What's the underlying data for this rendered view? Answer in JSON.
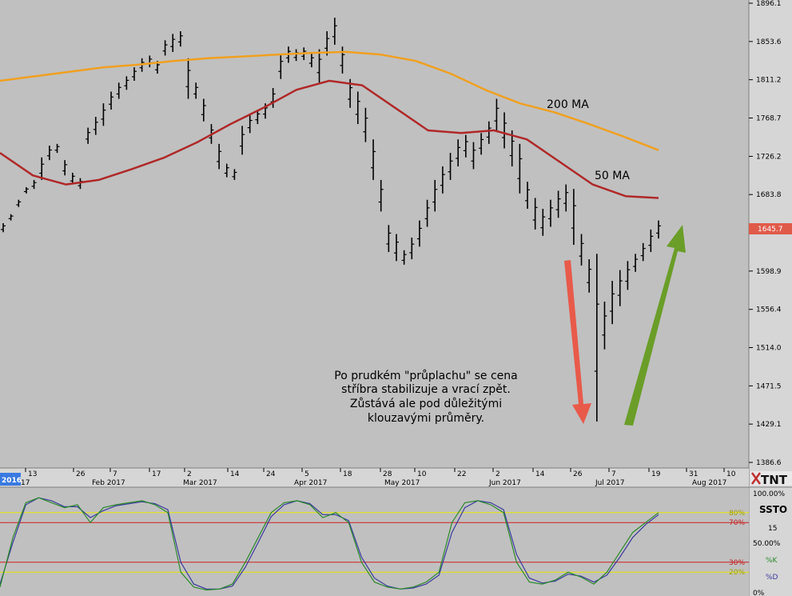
{
  "chart_data": {
    "type": "ohlc",
    "y_axis": {
      "ticks": [
        "1896.1",
        "1853.6",
        "1811.2",
        "1768.7",
        "1726.2",
        "1683.8",
        "1645.7",
        "1598.9",
        "1556.4",
        "1514.0",
        "1471.5",
        "1429.1",
        "1386.6"
      ],
      "last_price": "1645.7",
      "range": [
        1386.6,
        1896.1
      ]
    },
    "x_axis": {
      "day_ticks": [
        "17",
        "13",
        "26",
        "7",
        "17",
        "2",
        "14",
        "24",
        "5",
        "18",
        "28",
        "10",
        "22",
        "2",
        "14",
        "26",
        "7",
        "19",
        "31",
        "10"
      ],
      "month_labels": [
        "2016",
        "Feb 2017",
        "Mar 2017",
        "Apr 2017",
        "May 2017",
        "Jun 2017",
        "Jul 2017",
        "Aug 2017"
      ]
    },
    "moving_averages": [
      {
        "name": "200 MA",
        "color": "#f0a020"
      },
      {
        "name": "50 MA",
        "color": "#b02828"
      }
    ],
    "price_path": [
      [
        1642,
        1652
      ],
      [
        1655,
        1662
      ],
      [
        1670,
        1678
      ],
      [
        1685,
        1692
      ],
      [
        1690,
        1700
      ],
      [
        1700,
        1725
      ],
      [
        1722,
        1738
      ],
      [
        1730,
        1740
      ],
      [
        1705,
        1722
      ],
      [
        1695,
        1708
      ],
      [
        1690,
        1702
      ],
      [
        1740,
        1758
      ],
      [
        1750,
        1770
      ],
      [
        1760,
        1785
      ],
      [
        1778,
        1798
      ],
      [
        1790,
        1808
      ],
      [
        1800,
        1815
      ],
      [
        1810,
        1825
      ],
      [
        1820,
        1835
      ],
      [
        1825,
        1838
      ],
      [
        1818,
        1832
      ],
      [
        1838,
        1855
      ],
      [
        1842,
        1862
      ],
      [
        1848,
        1865
      ],
      [
        1790,
        1835
      ],
      [
        1790,
        1808
      ],
      [
        1765,
        1790
      ],
      [
        1740,
        1762
      ],
      [
        1712,
        1740
      ],
      [
        1703,
        1718
      ],
      [
        1700,
        1712
      ],
      [
        1728,
        1760
      ],
      [
        1752,
        1772
      ],
      [
        1762,
        1778
      ],
      [
        1768,
        1785
      ],
      [
        1780,
        1802
      ],
      [
        1812,
        1840
      ],
      [
        1830,
        1848
      ],
      [
        1832,
        1845
      ],
      [
        1833,
        1847
      ],
      [
        1825,
        1840
      ],
      [
        1808,
        1845
      ],
      [
        1838,
        1865
      ],
      [
        1850,
        1880
      ],
      [
        1818,
        1848
      ],
      [
        1780,
        1812
      ],
      [
        1762,
        1798
      ],
      [
        1742,
        1780
      ],
      [
        1700,
        1745
      ],
      [
        1665,
        1700
      ],
      [
        1620,
        1650
      ],
      [
        1610,
        1640
      ],
      [
        1606,
        1622
      ],
      [
        1612,
        1636
      ],
      [
        1626,
        1655
      ],
      [
        1648,
        1678
      ],
      [
        1665,
        1700
      ],
      [
        1685,
        1715
      ],
      [
        1700,
        1730
      ],
      [
        1715,
        1745
      ],
      [
        1725,
        1750
      ],
      [
        1712,
        1742
      ],
      [
        1728,
        1752
      ],
      [
        1740,
        1765
      ],
      [
        1755,
        1790
      ],
      [
        1735,
        1775
      ],
      [
        1715,
        1755
      ],
      [
        1685,
        1740
      ],
      [
        1668,
        1698
      ],
      [
        1645,
        1680
      ],
      [
        1638,
        1668
      ],
      [
        1648,
        1678
      ],
      [
        1658,
        1688
      ],
      [
        1665,
        1695
      ],
      [
        1628,
        1690
      ],
      [
        1605,
        1640
      ],
      [
        1575,
        1612
      ],
      [
        1432,
        1618
      ],
      [
        1512,
        1565
      ],
      [
        1540,
        1588
      ],
      [
        1560,
        1600
      ],
      [
        1578,
        1610
      ],
      [
        1598,
        1618
      ],
      [
        1610,
        1630
      ],
      [
        1620,
        1645
      ],
      [
        1635,
        1655
      ]
    ],
    "price_label": "",
    "ma200": [
      1810,
      1815,
      1820,
      1825,
      1828,
      1832,
      1835,
      1837,
      1839,
      1841,
      1842,
      1839,
      1832,
      1818,
      1800,
      1785,
      1775,
      1762,
      1748,
      1733
    ],
    "ma50": [
      1730,
      1705,
      1695,
      1700,
      1712,
      1725,
      1742,
      1762,
      1780,
      1800,
      1810,
      1805,
      1780,
      1755,
      1752,
      1755,
      1745,
      1720,
      1695,
      1682,
      1680
    ],
    "annotations": {
      "ma200_label": "200 MA",
      "ma50_label": "50 MA",
      "note_lines": [
        "Po prudkém \"průplachu\" se cena",
        "stříbra stabilizuje a vrací zpět.",
        "Zůstává ale pod důležitými",
        "klouzavými průměry."
      ]
    },
    "arrows": [
      {
        "direction": "down",
        "color": "#e85a4a"
      },
      {
        "direction": "up",
        "color": "#6a9e28"
      }
    ],
    "indicator": {
      "name": "SSTO",
      "period": "15",
      "levels": [
        "100.00%",
        "80%",
        "70%",
        "50.00%",
        "30%",
        "20%",
        "0%"
      ],
      "k_label": "%K",
      "d_label": "%D",
      "k_color": "#2a8a2a",
      "d_color": "#3a3aa0",
      "k_values": [
        5,
        55,
        90,
        95,
        90,
        85,
        88,
        70,
        85,
        88,
        90,
        92,
        88,
        80,
        20,
        5,
        2,
        3,
        8,
        30,
        55,
        80,
        90,
        92,
        88,
        75,
        80,
        70,
        30,
        10,
        5,
        3,
        5,
        10,
        20,
        70,
        90,
        92,
        88,
        80,
        30,
        10,
        8,
        12,
        20,
        15,
        8,
        20,
        40,
        60,
        70,
        80
      ],
      "d_values": [
        8,
        50,
        88,
        95,
        92,
        86,
        86,
        75,
        82,
        87,
        89,
        91,
        89,
        83,
        30,
        8,
        3,
        3,
        6,
        25,
        50,
        76,
        88,
        92,
        89,
        78,
        78,
        72,
        35,
        14,
        6,
        3,
        4,
        8,
        17,
        60,
        85,
        92,
        90,
        83,
        38,
        14,
        9,
        11,
        18,
        16,
        10,
        17,
        35,
        55,
        68,
        78
      ]
    },
    "logo": "TNT",
    "colors": {
      "background": "#c0c0c0",
      "last_price_badge": "#e05a4a",
      "level_80_20": "#e8e800",
      "level_70_30": "#d02020"
    }
  }
}
